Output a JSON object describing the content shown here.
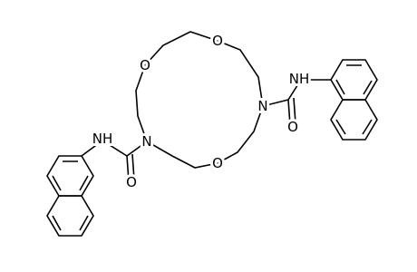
{
  "molecule": {
    "atoms": [
      "O",
      "O",
      "O",
      "N",
      "N",
      "O",
      "O",
      "NH",
      "NH"
    ]
  }
}
